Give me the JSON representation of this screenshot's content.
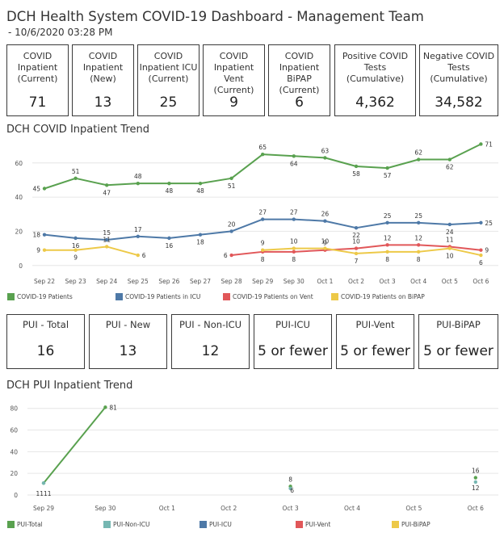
{
  "header": {
    "title": "DCH Health System COVID-19 Dashboard - Management Team",
    "subtitle": " - 10/6/2020 03:28 PM"
  },
  "kpis": [
    {
      "label": "COVID\nInpatient\n(Current)",
      "value": "71"
    },
    {
      "label": "COVID\nInpatient\n(New)",
      "value": "13"
    },
    {
      "label": "COVID\nInpatient ICU\n(Current)",
      "value": "25"
    },
    {
      "label": "COVID\nInpatient Vent\n(Current)",
      "value": "9"
    },
    {
      "label": "COVID\nInpatient BiPAP\n(Current)",
      "value": "6"
    },
    {
      "label": "Positive COVID\nTests\n(Cumulative)",
      "value": "4,362"
    },
    {
      "label": "Negative COVID\nTests\n(Cumulative)",
      "value": "34,582"
    }
  ],
  "pui_kpis": [
    {
      "label": "PUI - Total",
      "value": "16"
    },
    {
      "label": "PUI - New",
      "value": "13"
    },
    {
      "label": "PUI - Non-ICU",
      "value": "12"
    },
    {
      "label": "PUI-ICU",
      "value": "5 or fewer"
    },
    {
      "label": "PUI-Vent",
      "value": "5 or fewer"
    },
    {
      "label": "PUI-BiPAP",
      "value": "5 or fewer"
    }
  ],
  "colors": {
    "green": "#59a14f",
    "blue": "#4e79a7",
    "red": "#e15759",
    "yellow": "#edc948",
    "teal": "#76b7b2",
    "grid": "#e6e6e6",
    "axis_text": "#555555"
  },
  "chart_data": [
    {
      "type": "line",
      "title": "DCH COVID Inpatient Trend",
      "x": [
        "Sep 22",
        "Sep 23",
        "Sep 24",
        "Sep 25",
        "Sep 26",
        "Sep 27",
        "Sep 28",
        "Sep 29",
        "Sep 30",
        "Oct 1",
        "Oct 2",
        "Oct 3",
        "Oct 4",
        "Oct 5",
        "Oct 6"
      ],
      "ylim": [
        0,
        75
      ],
      "yticks": [
        0,
        20,
        40,
        60
      ],
      "grid": true,
      "legend_position": "bottom",
      "series": [
        {
          "name": "COVID-19 Patients",
          "color": "green",
          "values": [
            45,
            51,
            47,
            48,
            48,
            48,
            51,
            65,
            64,
            63,
            58,
            57,
            62,
            62,
            71
          ]
        },
        {
          "name": "COVID-19 Patients in ICU",
          "color": "blue",
          "values": [
            18,
            16,
            15,
            17,
            16,
            18,
            20,
            27,
            27,
            26,
            22,
            25,
            25,
            24,
            25
          ]
        },
        {
          "name": "COVID-19 Patients on Vent",
          "color": "red",
          "values": [
            null,
            null,
            null,
            null,
            null,
            null,
            6,
            8,
            8,
            9,
            10,
            12,
            12,
            11,
            9
          ]
        },
        {
          "name": "COVID-19 Patients on BiPAP",
          "color": "yellow",
          "values": [
            9,
            9,
            11,
            6,
            null,
            null,
            null,
            9,
            10,
            10,
            7,
            8,
            8,
            10,
            6
          ]
        }
      ]
    },
    {
      "type": "line",
      "title": "DCH PUI Inpatient Trend",
      "x": [
        "Sep 29",
        "Sep 30",
        "Oct 1",
        "Oct 2",
        "Oct 3",
        "Oct 4",
        "Oct 5",
        "Oct 6"
      ],
      "ylim": [
        0,
        85
      ],
      "yticks": [
        0,
        20,
        40,
        60,
        80
      ],
      "grid": true,
      "legend_position": "bottom",
      "series": [
        {
          "name": "PUI-Total",
          "color": "green",
          "values": [
            11,
            81,
            null,
            null,
            8,
            null,
            null,
            16
          ]
        },
        {
          "name": "PUI-Non-ICU",
          "color": "teal",
          "values": [
            11,
            null,
            null,
            null,
            6,
            null,
            null,
            12
          ]
        },
        {
          "name": "PUI-ICU",
          "color": "blue",
          "values": [
            null,
            null,
            null,
            null,
            null,
            null,
            null,
            null
          ]
        },
        {
          "name": "PUI-Vent",
          "color": "red",
          "values": [
            null,
            null,
            null,
            null,
            null,
            null,
            null,
            null
          ]
        },
        {
          "name": "PUI-BiPAP",
          "color": "yellow",
          "values": [
            null,
            null,
            null,
            null,
            null,
            null,
            null,
            null
          ]
        }
      ],
      "annotations": [
        {
          "text": "1111",
          "x": "Sep 29"
        },
        {
          "text": "81",
          "x": "Sep 30"
        },
        {
          "text": "8",
          "x": "Oct 3"
        },
        {
          "text": "6",
          "x": "Oct 3"
        },
        {
          "text": "16",
          "x": "Oct 6"
        },
        {
          "text": "12",
          "x": "Oct 6"
        }
      ]
    }
  ]
}
